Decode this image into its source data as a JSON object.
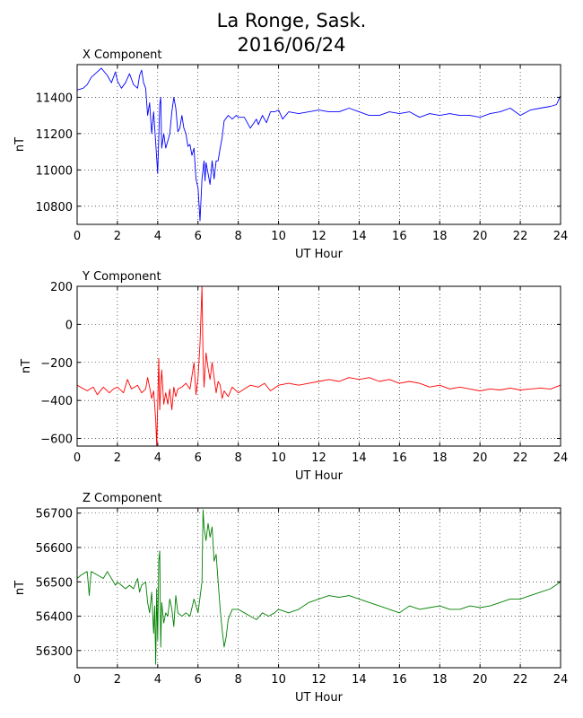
{
  "title": {
    "line1": "La Ronge, Sask.",
    "line2": "2016/06/24"
  },
  "chart_data": [
    {
      "type": "line",
      "title": "X Component",
      "xlabel": "UT Hour",
      "ylabel": "nT",
      "xlim": [
        0,
        24
      ],
      "ylim": [
        10700,
        11580
      ],
      "xticks": [
        0,
        2,
        4,
        6,
        8,
        10,
        12,
        14,
        16,
        18,
        20,
        22,
        24
      ],
      "yticks": [
        10800,
        11000,
        11200,
        11400
      ],
      "grid": true,
      "color": "#0000ff",
      "series": [
        {
          "x": [
            0,
            0.3,
            0.5,
            0.7,
            1.0,
            1.2,
            1.5,
            1.7,
            1.9,
            2.0,
            2.2,
            2.4,
            2.6,
            2.8,
            3.0,
            3.1,
            3.2,
            3.3,
            3.4,
            3.5,
            3.6,
            3.7,
            3.8,
            3.9,
            4.0,
            4.1,
            4.15,
            4.2,
            4.3,
            4.4,
            4.5,
            4.6,
            4.7,
            4.8,
            4.9,
            5.0,
            5.1,
            5.2,
            5.3,
            5.4,
            5.5,
            5.6,
            5.7,
            5.8,
            5.9,
            6.0,
            6.1,
            6.2,
            6.3,
            6.35,
            6.4,
            6.5,
            6.6,
            6.7,
            6.8,
            6.9,
            7.0,
            7.1,
            7.2,
            7.3,
            7.5,
            7.7,
            7.9,
            8.0,
            8.3,
            8.6,
            8.9,
            9.0,
            9.2,
            9.4,
            9.6,
            9.8,
            10.0,
            10.2,
            10.5,
            11.0,
            11.5,
            12.0,
            12.5,
            13.0,
            13.5,
            14.0,
            14.5,
            15.0,
            15.5,
            16.0,
            16.5,
            17.0,
            17.5,
            18.0,
            18.5,
            19.0,
            19.5,
            20.0,
            20.5,
            21.0,
            21.5,
            22.0,
            22.5,
            23.0,
            23.5,
            23.8,
            24.0
          ],
          "values": [
            11440,
            11450,
            11470,
            11510,
            11540,
            11560,
            11520,
            11480,
            11540,
            11490,
            11450,
            11480,
            11530,
            11470,
            11450,
            11520,
            11550,
            11480,
            11450,
            11300,
            11370,
            11200,
            11320,
            11150,
            10980,
            11360,
            11400,
            11120,
            11200,
            11120,
            11160,
            11200,
            11320,
            11400,
            11340,
            11210,
            11230,
            11300,
            11230,
            11200,
            11130,
            11140,
            11080,
            11120,
            10950,
            10900,
            10720,
            10950,
            11050,
            10940,
            11040,
            10980,
            10920,
            11050,
            10950,
            11050,
            11050,
            11120,
            11180,
            11270,
            11300,
            11280,
            11300,
            11290,
            11290,
            11230,
            11280,
            11250,
            11300,
            11260,
            11320,
            11320,
            11330,
            11280,
            11320,
            11310,
            11320,
            11330,
            11320,
            11320,
            11340,
            11320,
            11300,
            11300,
            11320,
            11310,
            11320,
            11290,
            11310,
            11300,
            11310,
            11300,
            11300,
            11290,
            11310,
            11320,
            11340,
            11300,
            11330,
            11340,
            11350,
            11360,
            11410
          ]
        }
      ]
    },
    {
      "type": "line",
      "title": "Y Component",
      "xlabel": "UT Hour",
      "ylabel": "nT",
      "xlim": [
        0,
        24
      ],
      "ylim": [
        -640,
        200
      ],
      "xticks": [
        0,
        2,
        4,
        6,
        8,
        10,
        12,
        14,
        16,
        18,
        20,
        22,
        24
      ],
      "yticks": [
        -600,
        -400,
        -200,
        0,
        200
      ],
      "grid": true,
      "color": "#ff0000",
      "series": [
        {
          "x": [
            0,
            0.5,
            0.8,
            1.0,
            1.3,
            1.6,
            1.8,
            2.0,
            2.3,
            2.5,
            2.7,
            3.0,
            3.2,
            3.4,
            3.5,
            3.6,
            3.7,
            3.8,
            3.9,
            3.95,
            4.0,
            4.05,
            4.1,
            4.15,
            4.2,
            4.3,
            4.4,
            4.5,
            4.6,
            4.7,
            4.8,
            4.9,
            5.0,
            5.2,
            5.4,
            5.6,
            5.8,
            5.9,
            6.0,
            6.1,
            6.2,
            6.25,
            6.3,
            6.4,
            6.5,
            6.6,
            6.7,
            6.8,
            6.9,
            7.0,
            7.1,
            7.2,
            7.3,
            7.5,
            7.7,
            8.0,
            8.3,
            8.6,
            9.0,
            9.3,
            9.6,
            10.0,
            10.5,
            11.0,
            11.5,
            12.0,
            12.5,
            13.0,
            13.5,
            14.0,
            14.5,
            15.0,
            15.5,
            16.0,
            16.5,
            17.0,
            17.5,
            18.0,
            18.5,
            19.0,
            19.5,
            20.0,
            20.5,
            21.0,
            21.5,
            22.0,
            22.5,
            23.0,
            23.5,
            24.0
          ],
          "values": [
            -320,
            -350,
            -330,
            -370,
            -330,
            -360,
            -340,
            -330,
            -360,
            -290,
            -340,
            -320,
            -360,
            -340,
            -280,
            -330,
            -390,
            -350,
            -500,
            -640,
            -420,
            -180,
            -450,
            -330,
            -240,
            -420,
            -360,
            -420,
            -340,
            -450,
            -330,
            -380,
            -340,
            -330,
            -310,
            -340,
            -200,
            -370,
            -280,
            -100,
            200,
            -180,
            -330,
            -150,
            -230,
            -290,
            -200,
            -280,
            -360,
            -300,
            -320,
            -390,
            -350,
            -380,
            -330,
            -360,
            -340,
            -320,
            -330,
            -310,
            -350,
            -320,
            -310,
            -320,
            -310,
            -300,
            -290,
            -300,
            -280,
            -290,
            -280,
            -300,
            -290,
            -310,
            -300,
            -310,
            -330,
            -320,
            -340,
            -330,
            -340,
            -350,
            -340,
            -345,
            -335,
            -345,
            -340,
            -335,
            -340,
            -320
          ]
        }
      ]
    },
    {
      "type": "line",
      "title": "Z Component",
      "xlabel": "UT Hour",
      "ylabel": "nT",
      "xlim": [
        0,
        24
      ],
      "ylim": [
        56250,
        56715
      ],
      "xticks": [
        0,
        2,
        4,
        6,
        8,
        10,
        12,
        14,
        16,
        18,
        20,
        22,
        24
      ],
      "yticks": [
        56300,
        56400,
        56500,
        56600,
        56700
      ],
      "grid": true,
      "color": "#008000",
      "series": [
        {
          "x": [
            0,
            0.2,
            0.5,
            0.6,
            0.65,
            0.7,
            1.0,
            1.3,
            1.5,
            1.7,
            1.9,
            2.0,
            2.2,
            2.4,
            2.6,
            2.8,
            3.0,
            3.1,
            3.2,
            3.4,
            3.5,
            3.6,
            3.7,
            3.8,
            3.85,
            3.9,
            3.95,
            4.0,
            4.05,
            4.1,
            4.15,
            4.2,
            4.3,
            4.4,
            4.5,
            4.6,
            4.7,
            4.8,
            4.9,
            5.0,
            5.2,
            5.4,
            5.6,
            5.8,
            6.0,
            6.2,
            6.25,
            6.3,
            6.4,
            6.5,
            6.6,
            6.7,
            6.8,
            6.9,
            7.0,
            7.1,
            7.2,
            7.3,
            7.4,
            7.5,
            7.7,
            8.0,
            8.3,
            8.6,
            8.9,
            9.2,
            9.5,
            9.8,
            10.0,
            10.5,
            11.0,
            11.5,
            12.0,
            12.5,
            13.0,
            13.5,
            14.0,
            14.5,
            15.0,
            15.5,
            16.0,
            16.5,
            17.0,
            17.5,
            18.0,
            18.5,
            19.0,
            19.5,
            20.0,
            20.5,
            21.0,
            21.5,
            22.0,
            22.5,
            23.0,
            23.5,
            24.0
          ],
          "values": [
            56510,
            56520,
            56530,
            56460,
            56500,
            56530,
            56520,
            56510,
            56530,
            56510,
            56490,
            56500,
            56490,
            56480,
            56490,
            56480,
            56510,
            56470,
            56490,
            56500,
            56440,
            56410,
            56470,
            56350,
            56430,
            56260,
            56480,
            56330,
            56560,
            56590,
            56310,
            56440,
            56380,
            56410,
            56400,
            56450,
            56420,
            56370,
            56460,
            56410,
            56400,
            56410,
            56400,
            56450,
            56410,
            56500,
            56710,
            56660,
            56620,
            56670,
            56630,
            56660,
            56560,
            56580,
            56500,
            56420,
            56360,
            56310,
            56340,
            56390,
            56420,
            56420,
            56410,
            56400,
            56390,
            56410,
            56400,
            56410,
            56420,
            56410,
            56420,
            56440,
            56450,
            56460,
            56455,
            56460,
            56450,
            56440,
            56430,
            56420,
            56410,
            56430,
            56420,
            56425,
            56430,
            56420,
            56420,
            56430,
            56425,
            56430,
            56440,
            56450,
            56450,
            56460,
            56470,
            56480,
            56500
          ]
        }
      ]
    }
  ]
}
